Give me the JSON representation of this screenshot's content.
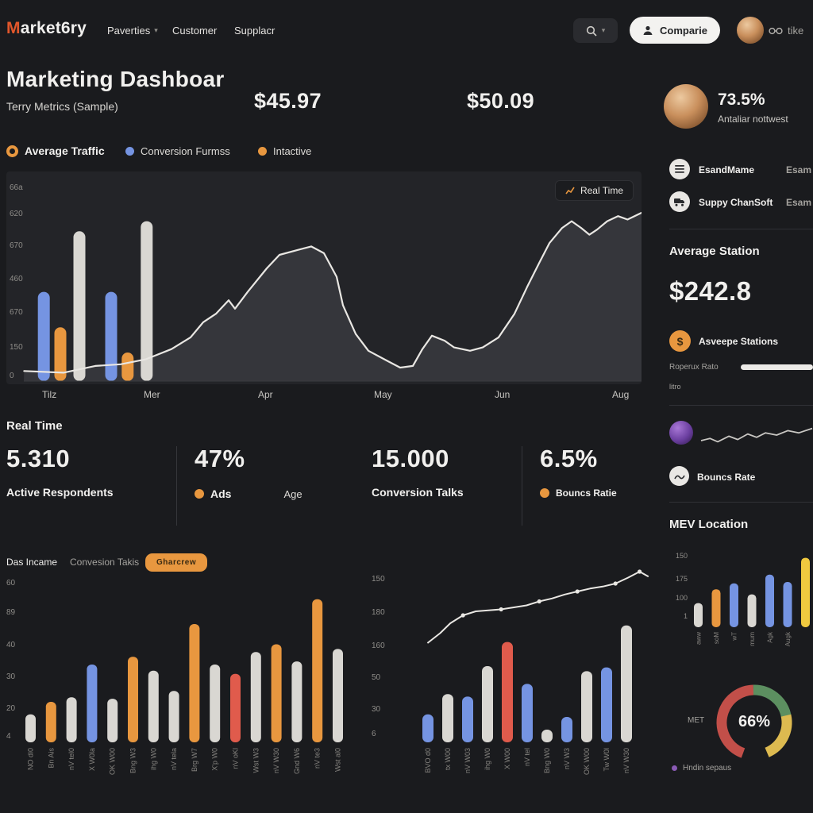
{
  "colors": {
    "bg": "#1a1b1e",
    "panel": "#232428",
    "text": "#f1f0ee",
    "text_dim": "#a5a39f",
    "orange": "#e8973f",
    "blue": "#7594e2",
    "red": "#e05b4c",
    "gray_bar": "#d9d7d2",
    "yellow": "#f0c93f",
    "line": "#e9e7e3",
    "area": "#35363b",
    "green": "#5c8f60",
    "gauge_red": "#c24f49",
    "gauge_yellow": "#ddba50",
    "purple": "#8a5bb5"
  },
  "nav": {
    "logo": "Market6ry",
    "items": [
      {
        "label": "Paverties"
      },
      {
        "label": "Customer"
      },
      {
        "label": "Supplacr"
      }
    ],
    "compare_label": "Comparie",
    "like_label": "tike"
  },
  "header": {
    "title": "Marketing Dashboar",
    "subtitle": "Terry Metrics (Sample)",
    "metric1": "$45.97",
    "metric2": "$50.09"
  },
  "legend": {
    "items": [
      {
        "label": "Average Traffic"
      },
      {
        "label": "Conversion Furmss"
      },
      {
        "label": "Intactive"
      }
    ]
  },
  "main_panel": {
    "button": "Real Time"
  },
  "realtime": {
    "title": "Real Time",
    "stats": [
      {
        "value": "5.310",
        "label": "Active Respondents"
      },
      {
        "value": "47%",
        "label": "Ads",
        "label2": "Age"
      },
      {
        "value": "15.000",
        "label": "Conversion Talks"
      },
      {
        "value": "6.5%",
        "label": "Bouncs Ratie"
      }
    ]
  },
  "bottom_left": {
    "tab1": "Das Incame",
    "tab2": "Convesion Takis",
    "button": "Gharcrew"
  },
  "sidebar": {
    "profile": {
      "percent": "73.5%",
      "name": "Antaliar nottwest"
    },
    "items": [
      {
        "label": "EsandMame",
        "value": "Esam"
      },
      {
        "label": "Suppy ChanSoft",
        "value": "Esam"
      }
    ],
    "avg_title": "Average Station",
    "avg_value": "$242.8",
    "avg_row": "Asveepe Stations",
    "slider_label": "Roperux Rato",
    "slider_sub": "litro",
    "bounce_label": "Bouncs Rate",
    "mev_title": "MEV Location",
    "gauge_side_label": "MET",
    "gauge_legend": "Hndin sepaus"
  },
  "chart_data": [
    {
      "id": "main",
      "type": "bar+line+area",
      "y_ticks": [
        "66a",
        "620",
        "670",
        "460",
        "670",
        "150",
        "0"
      ],
      "x_ticks": [
        "Tilz",
        "Mer",
        "Apr",
        "May",
        "Jun",
        "Aug"
      ],
      "bars": [
        {
          "x": 0.059,
          "v": 0.53,
          "color": "blue"
        },
        {
          "x": 0.085,
          "v": 0.32,
          "color": "orange"
        },
        {
          "x": 0.115,
          "v": 0.89,
          "color": "gray"
        },
        {
          "x": 0.165,
          "v": 0.53,
          "color": "blue"
        },
        {
          "x": 0.191,
          "v": 0.17,
          "color": "orange"
        },
        {
          "x": 0.221,
          "v": 0.95,
          "color": "gray"
        }
      ],
      "line": [
        [
          0.028,
          0.06
        ],
        [
          0.09,
          0.05
        ],
        [
          0.14,
          0.09
        ],
        [
          0.18,
          0.1
        ],
        [
          0.22,
          0.13
        ],
        [
          0.26,
          0.19
        ],
        [
          0.29,
          0.26
        ],
        [
          0.31,
          0.35
        ],
        [
          0.33,
          0.4
        ],
        [
          0.35,
          0.48
        ],
        [
          0.36,
          0.43
        ],
        [
          0.38,
          0.53
        ],
        [
          0.41,
          0.67
        ],
        [
          0.43,
          0.75
        ],
        [
          0.46,
          0.78
        ],
        [
          0.48,
          0.8
        ],
        [
          0.5,
          0.76
        ],
        [
          0.52,
          0.62
        ],
        [
          0.53,
          0.45
        ],
        [
          0.55,
          0.28
        ],
        [
          0.57,
          0.18
        ],
        [
          0.6,
          0.12
        ],
        [
          0.62,
          0.08
        ],
        [
          0.64,
          0.09
        ],
        [
          0.655,
          0.19
        ],
        [
          0.67,
          0.27
        ],
        [
          0.69,
          0.24
        ],
        [
          0.705,
          0.2
        ],
        [
          0.73,
          0.18
        ],
        [
          0.75,
          0.2
        ],
        [
          0.775,
          0.26
        ],
        [
          0.8,
          0.4
        ],
        [
          0.82,
          0.56
        ],
        [
          0.84,
          0.71
        ],
        [
          0.855,
          0.82
        ],
        [
          0.875,
          0.91
        ],
        [
          0.89,
          0.95
        ],
        [
          0.905,
          0.91
        ],
        [
          0.918,
          0.87
        ],
        [
          0.93,
          0.9
        ],
        [
          0.946,
          0.95
        ],
        [
          0.963,
          0.98
        ],
        [
          0.978,
          0.96
        ],
        [
          1.0,
          1.0
        ]
      ]
    },
    {
      "id": "bottom_left",
      "type": "bar",
      "y_ticks": [
        "60",
        "89",
        "40",
        "30",
        "20",
        "4"
      ],
      "bars": [
        {
          "label": "NO di0",
          "v": 0.18,
          "color": "gray"
        },
        {
          "label": "Bn Ais",
          "v": 0.26,
          "color": "orange"
        },
        {
          "label": "nV tel0",
          "v": 0.29,
          "color": "gray"
        },
        {
          "label": "X W0la",
          "v": 0.5,
          "color": "blue"
        },
        {
          "label": "OK W00",
          "v": 0.28,
          "color": "gray"
        },
        {
          "label": "Bng W3",
          "v": 0.55,
          "color": "orange"
        },
        {
          "label": "ihg W0",
          "v": 0.46,
          "color": "gray"
        },
        {
          "label": "nV tela",
          "v": 0.33,
          "color": "gray"
        },
        {
          "label": "Brg W7",
          "v": 0.76,
          "color": "orange"
        },
        {
          "label": "X'p W0",
          "v": 0.5,
          "color": "gray"
        },
        {
          "label": "nV oKl",
          "v": 0.44,
          "color": "red"
        },
        {
          "label": "Wst W3",
          "v": 0.58,
          "color": "gray"
        },
        {
          "label": "nV W30",
          "v": 0.63,
          "color": "orange"
        },
        {
          "label": "Gnd W6",
          "v": 0.52,
          "color": "gray"
        },
        {
          "label": "nV te3",
          "v": 0.92,
          "color": "orange"
        },
        {
          "label": "Wst al0",
          "v": 0.6,
          "color": "gray"
        }
      ]
    },
    {
      "id": "bottom_mid",
      "type": "line+bar",
      "y_ticks": [
        "150",
        "180",
        "160",
        "50",
        "30",
        "6"
      ],
      "line": [
        [
          0.12,
          0.08
        ],
        [
          0.17,
          0.18
        ],
        [
          0.21,
          0.28
        ],
        [
          0.26,
          0.36
        ],
        [
          0.31,
          0.4
        ],
        [
          0.36,
          0.41
        ],
        [
          0.41,
          0.42
        ],
        [
          0.46,
          0.44
        ],
        [
          0.51,
          0.46
        ],
        [
          0.56,
          0.5
        ],
        [
          0.61,
          0.53
        ],
        [
          0.66,
          0.57
        ],
        [
          0.71,
          0.6
        ],
        [
          0.76,
          0.63
        ],
        [
          0.81,
          0.65
        ],
        [
          0.86,
          0.68
        ],
        [
          0.91,
          0.74
        ],
        [
          0.955,
          0.8
        ],
        [
          0.99,
          0.75
        ]
      ],
      "markers": [
        3,
        6,
        9,
        12,
        15,
        17
      ],
      "bars": [
        {
          "label": "BVO d0",
          "v": 0.22,
          "color": "blue"
        },
        {
          "label": "tx W00",
          "v": 0.38,
          "color": "gray"
        },
        {
          "label": "nV W03",
          "v": 0.36,
          "color": "blue"
        },
        {
          "label": "ihg W0",
          "v": 0.6,
          "color": "gray"
        },
        {
          "label": "X W00",
          "v": 0.79,
          "color": "red"
        },
        {
          "label": "nV tel",
          "v": 0.46,
          "color": "blue"
        },
        {
          "label": "Bng W0",
          "v": 0.1,
          "color": "gray"
        },
        {
          "label": "nV W3",
          "v": 0.2,
          "color": "blue"
        },
        {
          "label": "OK W00",
          "v": 0.56,
          "color": "gray"
        },
        {
          "label": "Tw W0l",
          "v": 0.59,
          "color": "blue"
        },
        {
          "label": "nV W30",
          "v": 0.92,
          "color": "gray"
        }
      ]
    },
    {
      "id": "mev",
      "type": "bar",
      "y_ticks": [
        "150",
        "175",
        "100",
        "1"
      ],
      "bars": [
        {
          "label": "aww",
          "v": 0.33,
          "color": "gray"
        },
        {
          "label": "soM",
          "v": 0.52,
          "color": "orange"
        },
        {
          "label": "wT",
          "v": 0.6,
          "color": "blue"
        },
        {
          "label": "mum",
          "v": 0.45,
          "color": "gray"
        },
        {
          "label": "Agk",
          "v": 0.72,
          "color": "blue"
        },
        {
          "label": "Augk",
          "v": 0.62,
          "color": "blue"
        },
        {
          "label": "",
          "v": 0.95,
          "color": "yellow"
        }
      ]
    },
    {
      "id": "spark",
      "type": "line",
      "line": [
        [
          0,
          0.25
        ],
        [
          0.08,
          0.35
        ],
        [
          0.15,
          0.2
        ],
        [
          0.25,
          0.45
        ],
        [
          0.33,
          0.3
        ],
        [
          0.42,
          0.55
        ],
        [
          0.5,
          0.4
        ],
        [
          0.58,
          0.6
        ],
        [
          0.68,
          0.5
        ],
        [
          0.78,
          0.7
        ],
        [
          0.88,
          0.6
        ],
        [
          1,
          0.8
        ]
      ]
    },
    {
      "id": "gauge",
      "type": "donut",
      "value": "66%",
      "start_deg": 110,
      "segments": [
        {
          "color_key": "gauge_red",
          "pct": 44
        },
        {
          "color_key": "green",
          "pct": 22
        },
        {
          "color_key": "gauge_yellow",
          "pct": 22
        }
      ]
    }
  ]
}
